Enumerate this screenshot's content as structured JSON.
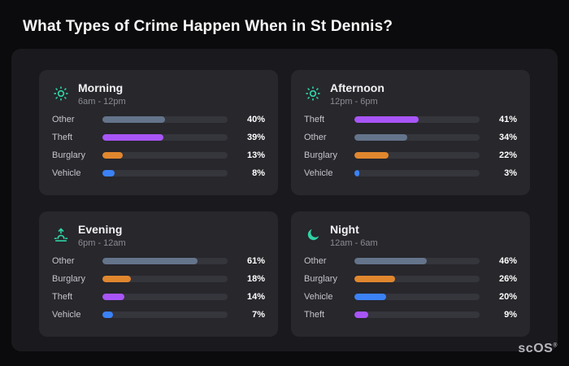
{
  "page": {
    "title": "What Types of Crime Happen When in St Dennis?",
    "brand": "scOS",
    "brand_mark": "®"
  },
  "chart_data": {
    "type": "bar",
    "orientation": "horizontal",
    "title": "What Types of Crime Happen When in St Dennis?",
    "unit": "%",
    "scale_max": 80,
    "colors": {
      "Other": "#64748b",
      "Theft": "#a855f7",
      "Burglary": "#e0872e",
      "Vehicle": "#3b82f6",
      "icon": "#2fd3a5",
      "track": "#35353c"
    },
    "groups": [
      {
        "name": "Morning",
        "time_range": "6am - 12pm",
        "icon": "sun-icon",
        "rows": [
          {
            "label": "Other",
            "value": 40,
            "display": "40%"
          },
          {
            "label": "Theft",
            "value": 39,
            "display": "39%"
          },
          {
            "label": "Burglary",
            "value": 13,
            "display": "13%"
          },
          {
            "label": "Vehicle",
            "value": 8,
            "display": "8%"
          }
        ]
      },
      {
        "name": "Afternoon",
        "time_range": "12pm - 6pm",
        "icon": "sun-icon",
        "rows": [
          {
            "label": "Theft",
            "value": 41,
            "display": "41%"
          },
          {
            "label": "Other",
            "value": 34,
            "display": "34%"
          },
          {
            "label": "Burglary",
            "value": 22,
            "display": "22%"
          },
          {
            "label": "Vehicle",
            "value": 3,
            "display": "3%"
          }
        ]
      },
      {
        "name": "Evening",
        "time_range": "6pm - 12am",
        "icon": "sunset-icon",
        "rows": [
          {
            "label": "Other",
            "value": 61,
            "display": "61%"
          },
          {
            "label": "Burglary",
            "value": 18,
            "display": "18%"
          },
          {
            "label": "Theft",
            "value": 14,
            "display": "14%"
          },
          {
            "label": "Vehicle",
            "value": 7,
            "display": "7%"
          }
        ]
      },
      {
        "name": "Night",
        "time_range": "12am - 6am",
        "icon": "moon-icon",
        "rows": [
          {
            "label": "Other",
            "value": 46,
            "display": "46%"
          },
          {
            "label": "Burglary",
            "value": 26,
            "display": "26%"
          },
          {
            "label": "Vehicle",
            "value": 20,
            "display": "20%"
          },
          {
            "label": "Theft",
            "value": 9,
            "display": "9%"
          }
        ]
      }
    ]
  }
}
